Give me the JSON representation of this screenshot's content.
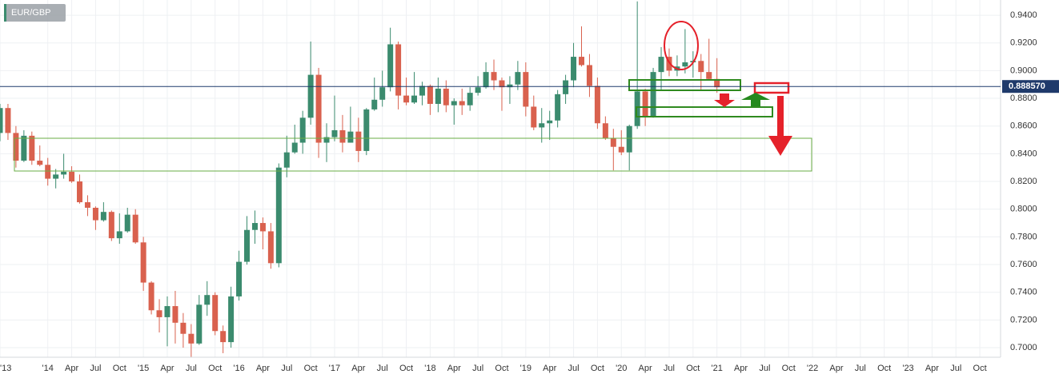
{
  "chart_data": {
    "type": "candlestick",
    "title": "EUR/GBP",
    "x": [
      "2013-07",
      "2013-08",
      "2013-09",
      "2013-10",
      "2013-11",
      "2013-12",
      "2014-01",
      "2014-02",
      "2014-03",
      "2014-04",
      "2014-05",
      "2014-06",
      "2014-07",
      "2014-08",
      "2014-09",
      "2014-10",
      "2014-11",
      "2014-12",
      "2015-01",
      "2015-02",
      "2015-03",
      "2015-04",
      "2015-05",
      "2015-06",
      "2015-07",
      "2015-08",
      "2015-09",
      "2015-10",
      "2015-11",
      "2015-12",
      "2016-01",
      "2016-02",
      "2016-03",
      "2016-04",
      "2016-05",
      "2016-06",
      "2016-07",
      "2016-08",
      "2016-09",
      "2016-10",
      "2016-11",
      "2016-12",
      "2017-01",
      "2017-02",
      "2017-03",
      "2017-04",
      "2017-05",
      "2017-06",
      "2017-07",
      "2017-08",
      "2017-09",
      "2017-10",
      "2017-11",
      "2017-12",
      "2018-01",
      "2018-02",
      "2018-03",
      "2018-04",
      "2018-05",
      "2018-06",
      "2018-07",
      "2018-08",
      "2018-09",
      "2018-10",
      "2018-11",
      "2018-12",
      "2019-01",
      "2019-02",
      "2019-03",
      "2019-04",
      "2019-05",
      "2019-06",
      "2019-07",
      "2019-08",
      "2019-09",
      "2019-10",
      "2019-11",
      "2019-12",
      "2020-01",
      "2020-02",
      "2020-03",
      "2020-04",
      "2020-05",
      "2020-06",
      "2020-07",
      "2020-08",
      "2020-09",
      "2020-10",
      "2020-11",
      "2020-12",
      "2021-01"
    ],
    "open": [
      0.855,
      0.873,
      0.855,
      0.835,
      0.853,
      0.835,
      0.832,
      0.822,
      0.825,
      0.827,
      0.82,
      0.805,
      0.801,
      0.792,
      0.798,
      0.779,
      0.784,
      0.796,
      0.776,
      0.747,
      0.727,
      0.722,
      0.73,
      0.718,
      0.71,
      0.703,
      0.731,
      0.738,
      0.712,
      0.704,
      0.737,
      0.762,
      0.785,
      0.79,
      0.784,
      0.761,
      0.83,
      0.841,
      0.848,
      0.866,
      0.897,
      0.848,
      0.852,
      0.857,
      0.848,
      0.856,
      0.842,
      0.872,
      0.879,
      0.888,
      0.919,
      0.882,
      0.877,
      0.882,
      0.889,
      0.876,
      0.887,
      0.875,
      0.878,
      0.875,
      0.884,
      0.888,
      0.899,
      0.893,
      0.888,
      0.89,
      0.899,
      0.874,
      0.859,
      0.862,
      0.864,
      0.883,
      0.893,
      0.91,
      0.904,
      0.889,
      0.862,
      0.851,
      0.845,
      0.841,
      0.86,
      0.885,
      0.867,
      0.899,
      0.91,
      0.9,
      0.903,
      0.906,
      0.907,
      0.899,
      0.894
    ],
    "high": [
      0.876,
      0.876,
      0.86,
      0.857,
      0.856,
      0.846,
      0.837,
      0.829,
      0.84,
      0.831,
      0.825,
      0.81,
      0.802,
      0.805,
      0.799,
      0.797,
      0.801,
      0.8,
      0.78,
      0.748,
      0.735,
      0.737,
      0.741,
      0.725,
      0.717,
      0.738,
      0.748,
      0.74,
      0.716,
      0.744,
      0.77,
      0.795,
      0.799,
      0.794,
      0.79,
      0.833,
      0.853,
      0.861,
      0.871,
      0.921,
      0.902,
      0.862,
      0.882,
      0.868,
      0.874,
      0.866,
      0.873,
      0.895,
      0.9,
      0.931,
      0.921,
      0.895,
      0.899,
      0.892,
      0.89,
      0.895,
      0.893,
      0.88,
      0.887,
      0.888,
      0.896,
      0.906,
      0.908,
      0.895,
      0.896,
      0.907,
      0.906,
      0.882,
      0.873,
      0.871,
      0.886,
      0.897,
      0.92,
      0.932,
      0.912,
      0.895,
      0.867,
      0.858,
      0.857,
      0.861,
      0.95,
      0.887,
      0.902,
      0.917,
      0.916,
      0.911,
      0.93,
      0.914,
      0.912,
      0.923,
      0.909
    ],
    "low": [
      0.849,
      0.85,
      0.83,
      0.834,
      0.832,
      0.831,
      0.817,
      0.815,
      0.822,
      0.819,
      0.804,
      0.795,
      0.785,
      0.791,
      0.777,
      0.775,
      0.783,
      0.775,
      0.741,
      0.724,
      0.711,
      0.701,
      0.703,
      0.7,
      0.693,
      0.702,
      0.723,
      0.709,
      0.696,
      0.7,
      0.734,
      0.76,
      0.775,
      0.771,
      0.757,
      0.758,
      0.823,
      0.84,
      0.84,
      0.861,
      0.837,
      0.834,
      0.849,
      0.841,
      0.848,
      0.834,
      0.839,
      0.871,
      0.874,
      0.885,
      0.872,
      0.875,
      0.876,
      0.875,
      0.868,
      0.87,
      0.87,
      0.861,
      0.868,
      0.871,
      0.882,
      0.887,
      0.886,
      0.871,
      0.876,
      0.886,
      0.867,
      0.857,
      0.848,
      0.85,
      0.859,
      0.876,
      0.888,
      0.903,
      0.881,
      0.858,
      0.85,
      0.828,
      0.839,
      0.828,
      0.858,
      0.86,
      0.866,
      0.886,
      0.896,
      0.896,
      0.898,
      0.895,
      0.886,
      0.893,
      0.884
    ],
    "close": [
      0.873,
      0.855,
      0.835,
      0.853,
      0.835,
      0.832,
      0.822,
      0.825,
      0.827,
      0.82,
      0.805,
      0.801,
      0.792,
      0.798,
      0.779,
      0.784,
      0.796,
      0.776,
      0.747,
      0.727,
      0.722,
      0.73,
      0.718,
      0.71,
      0.703,
      0.731,
      0.738,
      0.712,
      0.704,
      0.737,
      0.762,
      0.785,
      0.79,
      0.784,
      0.761,
      0.83,
      0.841,
      0.848,
      0.866,
      0.897,
      0.848,
      0.852,
      0.857,
      0.848,
      0.856,
      0.842,
      0.872,
      0.879,
      0.888,
      0.919,
      0.882,
      0.877,
      0.882,
      0.889,
      0.876,
      0.887,
      0.875,
      0.878,
      0.875,
      0.884,
      0.888,
      0.899,
      0.893,
      0.888,
      0.89,
      0.899,
      0.874,
      0.859,
      0.862,
      0.864,
      0.883,
      0.893,
      0.91,
      0.904,
      0.889,
      0.862,
      0.851,
      0.845,
      0.841,
      0.86,
      0.885,
      0.867,
      0.899,
      0.91,
      0.9,
      0.903,
      0.906,
      0.907,
      0.899,
      0.894,
      0.888
    ],
    "up_color": "#3b8b6e",
    "down_color": "#d9614e",
    "current_price": {
      "value": 0.88857,
      "label": "0.888570"
    },
    "current_price_color": "#1f3a6b",
    "xlim": [
      "2013-07",
      "2023-12"
    ],
    "xticks": [
      {
        "value": "2013-07",
        "label": "'13"
      },
      {
        "value": "2014-01",
        "label": "'14"
      },
      {
        "value": "2014-04",
        "label": "Apr"
      },
      {
        "value": "2014-07",
        "label": "Jul"
      },
      {
        "value": "2014-10",
        "label": "Oct"
      },
      {
        "value": "2015-01",
        "label": "'15"
      },
      {
        "value": "2015-04",
        "label": "Apr"
      },
      {
        "value": "2015-07",
        "label": "Jul"
      },
      {
        "value": "2015-10",
        "label": "Oct"
      },
      {
        "value": "2016-01",
        "label": "'16"
      },
      {
        "value": "2016-04",
        "label": "Apr"
      },
      {
        "value": "2016-07",
        "label": "Jul"
      },
      {
        "value": "2016-10",
        "label": "Oct"
      },
      {
        "value": "2017-01",
        "label": "'17"
      },
      {
        "value": "2017-04",
        "label": "Apr"
      },
      {
        "value": "2017-07",
        "label": "Jul"
      },
      {
        "value": "2017-10",
        "label": "Oct"
      },
      {
        "value": "2018-01",
        "label": "'18"
      },
      {
        "value": "2018-04",
        "label": "Apr"
      },
      {
        "value": "2018-07",
        "label": "Jul"
      },
      {
        "value": "2018-10",
        "label": "Oct"
      },
      {
        "value": "2019-01",
        "label": "'19"
      },
      {
        "value": "2019-04",
        "label": "Apr"
      },
      {
        "value": "2019-07",
        "label": "Jul"
      },
      {
        "value": "2019-10",
        "label": "Oct"
      },
      {
        "value": "2020-01",
        "label": "'20"
      },
      {
        "value": "2020-04",
        "label": "Apr"
      },
      {
        "value": "2020-07",
        "label": "Jul"
      },
      {
        "value": "2020-10",
        "label": "Oct"
      },
      {
        "value": "2021-01",
        "label": "'21"
      },
      {
        "value": "2021-04",
        "label": "Apr"
      },
      {
        "value": "2021-07",
        "label": "Jul"
      },
      {
        "value": "2021-10",
        "label": "Oct"
      },
      {
        "value": "2022-01",
        "label": "'22"
      },
      {
        "value": "2022-04",
        "label": "Apr"
      },
      {
        "value": "2022-07",
        "label": "Jul"
      },
      {
        "value": "2022-10",
        "label": "Oct"
      },
      {
        "value": "2023-01",
        "label": "'23"
      },
      {
        "value": "2023-04",
        "label": "Apr"
      },
      {
        "value": "2023-07",
        "label": "Jul"
      },
      {
        "value": "2023-10",
        "label": "Oct"
      }
    ],
    "ylim": [
      0.6931,
      0.951
    ],
    "yticks": [
      {
        "value": 0.7,
        "label": "0.7000"
      },
      {
        "value": 0.72,
        "label": "0.7200"
      },
      {
        "value": 0.74,
        "label": "0.7400"
      },
      {
        "value": 0.76,
        "label": "0.7600"
      },
      {
        "value": 0.78,
        "label": "0.7800"
      },
      {
        "value": 0.8,
        "label": "0.8000"
      },
      {
        "value": 0.82,
        "label": "0.8200"
      },
      {
        "value": 0.84,
        "label": "0.8400"
      },
      {
        "value": 0.86,
        "label": "0.8600"
      },
      {
        "value": 0.88,
        "label": "0.8800"
      },
      {
        "value": 0.9,
        "label": "0.9000"
      },
      {
        "value": 0.92,
        "label": "0.9200"
      },
      {
        "value": 0.94,
        "label": "0.9400"
      }
    ],
    "grid": true
  }
}
